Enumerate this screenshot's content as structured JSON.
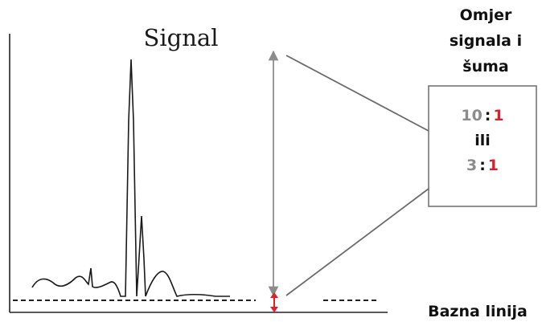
{
  "diagram": {
    "title": "Signal",
    "header_label": [
      "Omjer",
      "signala i",
      "šuma"
    ],
    "baseline_label": "Bazna linija",
    "ratio_box": {
      "first": {
        "signal": "10",
        "separator": ":",
        "noise": "1"
      },
      "or_word": "ili",
      "second": {
        "signal": "3",
        "separator": ":",
        "noise": "1"
      }
    },
    "colors": {
      "signal_number": "#8c8c8c",
      "noise_number": "#d9202f",
      "arrow": "#8c8c8c",
      "noise_arrow": "#e0202a",
      "ink": "#111111"
    }
  }
}
